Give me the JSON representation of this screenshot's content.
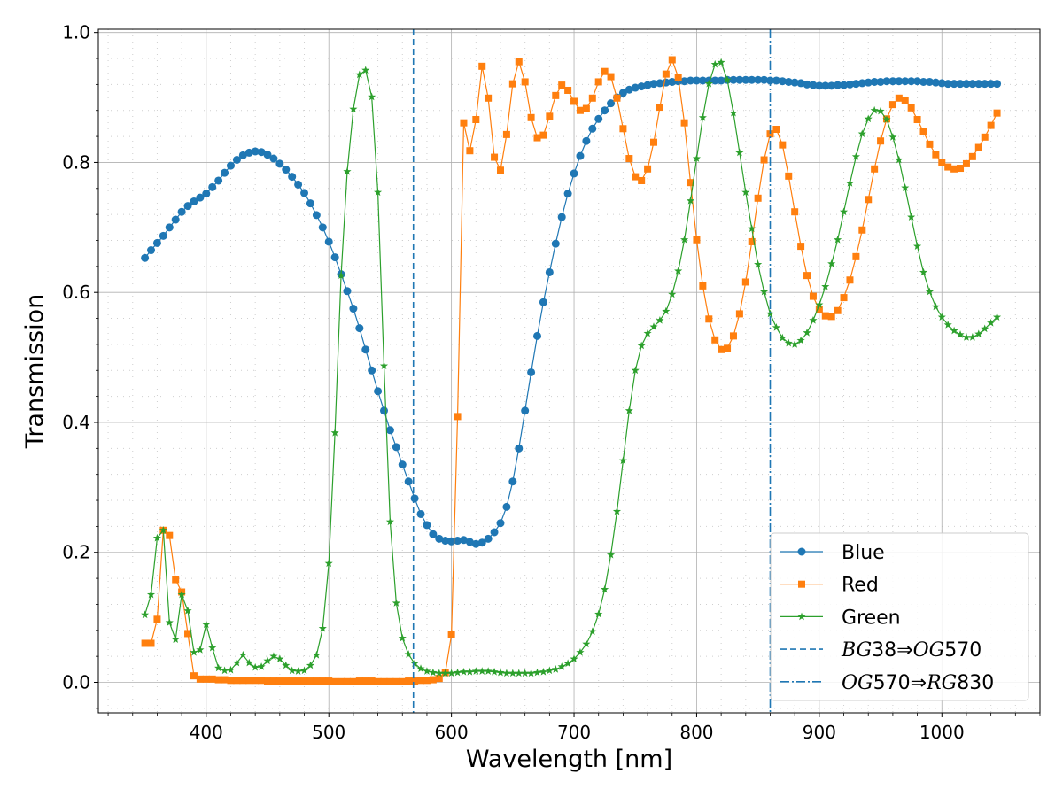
{
  "chart_data": {
    "type": "line",
    "xlabel": "Wavelength [nm]",
    "ylabel": "Transmission",
    "xlim": [
      312,
      1080
    ],
    "ylim": [
      -0.047,
      1.005
    ],
    "xticks": [
      400,
      500,
      600,
      700,
      800,
      900,
      1000
    ],
    "xtick_labels": [
      "400",
      "500",
      "600",
      "700",
      "800",
      "900",
      "1000"
    ],
    "yticks": [
      0.0,
      0.2,
      0.4,
      0.6,
      0.8,
      1.0
    ],
    "ytick_labels": [
      "0.0",
      "0.2",
      "0.4",
      "0.6",
      "0.8",
      "1.0"
    ],
    "grid": true,
    "minor_grid": true,
    "legend_position": "lower-right",
    "series": [
      {
        "name": "Blue",
        "color": "#1f77b4",
        "marker": "circle",
        "x": [
          350,
          355,
          360,
          365,
          370,
          375,
          380,
          385,
          390,
          395,
          400,
          405,
          410,
          415,
          420,
          425,
          430,
          435,
          440,
          445,
          450,
          455,
          460,
          465,
          470,
          475,
          480,
          485,
          490,
          495,
          500,
          505,
          510,
          515,
          520,
          525,
          530,
          535,
          540,
          545,
          550,
          555,
          560,
          565,
          570,
          575,
          580,
          585,
          590,
          595,
          600,
          605,
          610,
          615,
          620,
          625,
          630,
          635,
          640,
          645,
          650,
          655,
          660,
          665,
          670,
          675,
          680,
          685,
          690,
          695,
          700,
          705,
          710,
          715,
          720,
          725,
          730,
          735,
          740,
          745,
          750,
          755,
          760,
          765,
          770,
          775,
          780,
          785,
          790,
          795,
          800,
          805,
          810,
          815,
          820,
          825,
          830,
          835,
          840,
          845,
          850,
          855,
          860,
          865,
          870,
          875,
          880,
          885,
          890,
          895,
          900,
          905,
          910,
          915,
          920,
          925,
          930,
          935,
          940,
          945,
          950,
          955,
          960,
          965,
          970,
          975,
          980,
          985,
          990,
          995,
          1000,
          1005,
          1010,
          1015,
          1020,
          1025,
          1030,
          1035,
          1040,
          1045
        ],
        "y": [
          0.653,
          0.665,
          0.676,
          0.687,
          0.7,
          0.712,
          0.724,
          0.733,
          0.74,
          0.746,
          0.752,
          0.762,
          0.772,
          0.784,
          0.795,
          0.804,
          0.811,
          0.815,
          0.817,
          0.816,
          0.812,
          0.806,
          0.798,
          0.789,
          0.778,
          0.766,
          0.753,
          0.737,
          0.719,
          0.7,
          0.678,
          0.654,
          0.628,
          0.602,
          0.575,
          0.545,
          0.512,
          0.48,
          0.448,
          0.418,
          0.388,
          0.362,
          0.335,
          0.309,
          0.283,
          0.259,
          0.242,
          0.228,
          0.221,
          0.218,
          0.217,
          0.218,
          0.219,
          0.216,
          0.213,
          0.215,
          0.221,
          0.231,
          0.245,
          0.27,
          0.309,
          0.36,
          0.418,
          0.477,
          0.533,
          0.585,
          0.631,
          0.675,
          0.716,
          0.752,
          0.783,
          0.81,
          0.833,
          0.852,
          0.867,
          0.88,
          0.891,
          0.9,
          0.907,
          0.912,
          0.915,
          0.917,
          0.919,
          0.921,
          0.922,
          0.923,
          0.924,
          0.925,
          0.925,
          0.926,
          0.926,
          0.926,
          0.926,
          0.926,
          0.926,
          0.927,
          0.927,
          0.927,
          0.927,
          0.927,
          0.927,
          0.927,
          0.926,
          0.926,
          0.925,
          0.924,
          0.923,
          0.922,
          0.92,
          0.919,
          0.918,
          0.918,
          0.918,
          0.919,
          0.919,
          0.92,
          0.921,
          0.922,
          0.923,
          0.924,
          0.924,
          0.925,
          0.925,
          0.925,
          0.925,
          0.925,
          0.925,
          0.924,
          0.924,
          0.923,
          0.922,
          0.921,
          0.921,
          0.921,
          0.921,
          0.921,
          0.921,
          0.921,
          0.921,
          0.921
        ]
      },
      {
        "name": "Red",
        "color": "#ff7f0e",
        "marker": "square",
        "x": [
          350,
          355,
          360,
          365,
          370,
          375,
          380,
          385,
          390,
          395,
          400,
          405,
          410,
          415,
          420,
          425,
          430,
          435,
          440,
          445,
          450,
          455,
          460,
          465,
          470,
          475,
          480,
          485,
          490,
          495,
          500,
          505,
          510,
          515,
          520,
          525,
          530,
          535,
          540,
          545,
          550,
          555,
          560,
          565,
          570,
          575,
          580,
          585,
          590,
          595,
          600,
          605,
          610,
          615,
          620,
          625,
          630,
          635,
          640,
          645,
          650,
          655,
          660,
          665,
          670,
          675,
          680,
          685,
          690,
          695,
          700,
          705,
          710,
          715,
          720,
          725,
          730,
          735,
          740,
          745,
          750,
          755,
          760,
          765,
          770,
          775,
          780,
          785,
          790,
          795,
          800,
          805,
          810,
          815,
          820,
          825,
          830,
          835,
          840,
          845,
          850,
          855,
          860,
          865,
          870,
          875,
          880,
          885,
          890,
          895,
          900,
          905,
          910,
          915,
          920,
          925,
          930,
          935,
          940,
          945,
          950,
          955,
          960,
          965,
          970,
          975,
          980,
          985,
          990,
          995,
          1000,
          1005,
          1010,
          1015,
          1020,
          1025,
          1030,
          1035,
          1040,
          1045
        ],
        "y": [
          0.06,
          0.06,
          0.097,
          0.234,
          0.226,
          0.158,
          0.139,
          0.075,
          0.01,
          0.005,
          0.005,
          0.005,
          0.004,
          0.004,
          0.003,
          0.003,
          0.003,
          0.003,
          0.003,
          0.003,
          0.002,
          0.002,
          0.002,
          0.002,
          0.002,
          0.002,
          0.002,
          0.002,
          0.002,
          0.002,
          0.002,
          0.001,
          0.001,
          0.001,
          0.001,
          0.002,
          0.002,
          0.002,
          0.001,
          0.001,
          0.001,
          0.001,
          0.001,
          0.002,
          0.002,
          0.003,
          0.003,
          0.004,
          0.006,
          0.015,
          0.073,
          0.409,
          0.861,
          0.818,
          0.866,
          0.948,
          0.899,
          0.808,
          0.788,
          0.843,
          0.921,
          0.955,
          0.924,
          0.869,
          0.838,
          0.842,
          0.871,
          0.903,
          0.919,
          0.911,
          0.894,
          0.88,
          0.883,
          0.899,
          0.924,
          0.94,
          0.932,
          0.899,
          0.852,
          0.806,
          0.778,
          0.772,
          0.79,
          0.831,
          0.885,
          0.936,
          0.958,
          0.931,
          0.861,
          0.769,
          0.681,
          0.61,
          0.559,
          0.527,
          0.512,
          0.514,
          0.533,
          0.567,
          0.616,
          0.678,
          0.745,
          0.804,
          0.844,
          0.851,
          0.827,
          0.779,
          0.724,
          0.671,
          0.626,
          0.594,
          0.573,
          0.564,
          0.563,
          0.572,
          0.592,
          0.619,
          0.655,
          0.696,
          0.743,
          0.79,
          0.833,
          0.867,
          0.889,
          0.899,
          0.896,
          0.884,
          0.866,
          0.847,
          0.828,
          0.812,
          0.8,
          0.793,
          0.79,
          0.791,
          0.798,
          0.809,
          0.823,
          0.839,
          0.857,
          0.876
        ]
      },
      {
        "name": "Green",
        "color": "#2ca02c",
        "marker": "star",
        "x": [
          350,
          355,
          360,
          365,
          370,
          375,
          380,
          385,
          390,
          395,
          400,
          405,
          410,
          415,
          420,
          425,
          430,
          435,
          440,
          445,
          450,
          455,
          460,
          465,
          470,
          475,
          480,
          485,
          490,
          495,
          500,
          505,
          510,
          515,
          520,
          525,
          530,
          535,
          540,
          545,
          550,
          555,
          560,
          565,
          570,
          575,
          580,
          585,
          590,
          595,
          600,
          605,
          610,
          615,
          620,
          625,
          630,
          635,
          640,
          645,
          650,
          655,
          660,
          665,
          670,
          675,
          680,
          685,
          690,
          695,
          700,
          705,
          710,
          715,
          720,
          725,
          730,
          735,
          740,
          745,
          750,
          755,
          760,
          765,
          770,
          775,
          780,
          785,
          790,
          795,
          800,
          805,
          810,
          815,
          820,
          825,
          830,
          835,
          840,
          845,
          850,
          855,
          860,
          865,
          870,
          875,
          880,
          885,
          890,
          895,
          900,
          905,
          910,
          915,
          920,
          925,
          930,
          935,
          940,
          945,
          950,
          955,
          960,
          965,
          970,
          975,
          980,
          985,
          990,
          995,
          1000,
          1005,
          1010,
          1015,
          1020,
          1025,
          1030,
          1035,
          1040,
          1045
        ],
        "y": [
          0.104,
          0.135,
          0.222,
          0.234,
          0.092,
          0.066,
          0.135,
          0.11,
          0.046,
          0.05,
          0.089,
          0.053,
          0.022,
          0.018,
          0.019,
          0.03,
          0.042,
          0.03,
          0.023,
          0.024,
          0.033,
          0.04,
          0.036,
          0.026,
          0.018,
          0.017,
          0.018,
          0.026,
          0.042,
          0.083,
          0.183,
          0.384,
          0.626,
          0.786,
          0.882,
          0.935,
          0.942,
          0.901,
          0.754,
          0.487,
          0.247,
          0.122,
          0.068,
          0.043,
          0.029,
          0.021,
          0.017,
          0.015,
          0.014,
          0.014,
          0.014,
          0.015,
          0.016,
          0.016,
          0.017,
          0.017,
          0.017,
          0.016,
          0.015,
          0.014,
          0.014,
          0.014,
          0.014,
          0.014,
          0.015,
          0.016,
          0.018,
          0.02,
          0.024,
          0.029,
          0.036,
          0.046,
          0.059,
          0.078,
          0.105,
          0.143,
          0.196,
          0.263,
          0.341,
          0.418,
          0.48,
          0.518,
          0.537,
          0.547,
          0.557,
          0.571,
          0.597,
          0.633,
          0.681,
          0.741,
          0.806,
          0.869,
          0.921,
          0.951,
          0.954,
          0.927,
          0.876,
          0.815,
          0.754,
          0.698,
          0.643,
          0.601,
          0.567,
          0.546,
          0.53,
          0.522,
          0.52,
          0.526,
          0.538,
          0.557,
          0.581,
          0.609,
          0.644,
          0.681,
          0.724,
          0.768,
          0.809,
          0.844,
          0.867,
          0.88,
          0.879,
          0.866,
          0.839,
          0.804,
          0.761,
          0.716,
          0.671,
          0.631,
          0.601,
          0.578,
          0.562,
          0.55,
          0.541,
          0.535,
          0.531,
          0.531,
          0.536,
          0.544,
          0.553,
          0.562
        ]
      }
    ],
    "vlines": [
      {
        "x": 569,
        "style": "dashed",
        "color": "#1f77b4",
        "label_pre": "BG",
        "label_num": "38",
        "label_arrow": "⇒",
        "label_post": "OG",
        "label_num2": "570"
      },
      {
        "x": 860,
        "style": "dashdot",
        "color": "#1f77b4",
        "label_pre": "OG",
        "label_num": "570",
        "label_arrow": "⇒",
        "label_post": "RG",
        "label_num2": "830"
      }
    ]
  }
}
